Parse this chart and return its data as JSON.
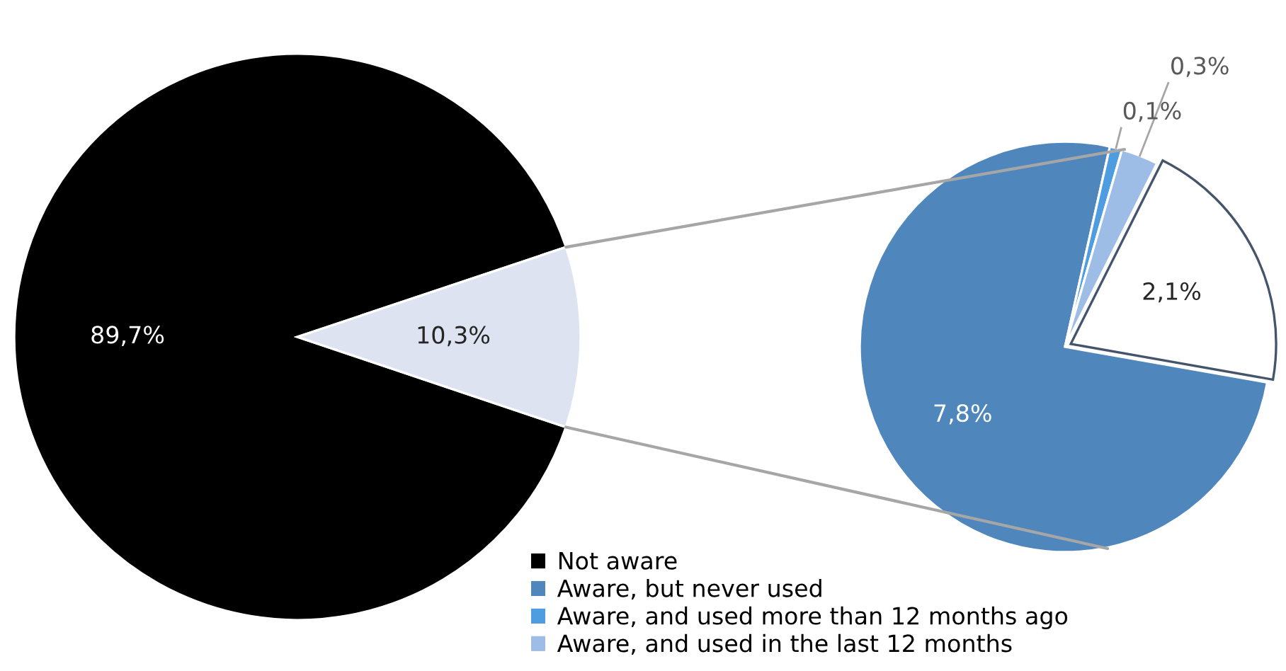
{
  "chart_data": [
    {
      "type": "pie",
      "categories": [
        "Not aware",
        null
      ],
      "values": [
        89.7,
        10.3
      ],
      "colors": [
        "#000000",
        "#dde3f0"
      ],
      "value_labels": [
        "89,7%",
        "10,3%"
      ],
      "legend": "bottom"
    },
    {
      "type": "pie",
      "categories": [
        "Aware, but never used",
        "Aware, and used more than 12 months ago",
        "Aware, and used in the last 12 months",
        null
      ],
      "values": [
        7.8,
        0.1,
        0.3,
        2.1
      ],
      "colors": [
        "#4f87bd",
        "#4d9de0",
        "#9ebde6",
        "#ffffff"
      ],
      "value_labels": [
        "7,8%",
        "0,1%",
        "0,3%",
        "2,1%"
      ],
      "legend": "bottom"
    }
  ]
}
